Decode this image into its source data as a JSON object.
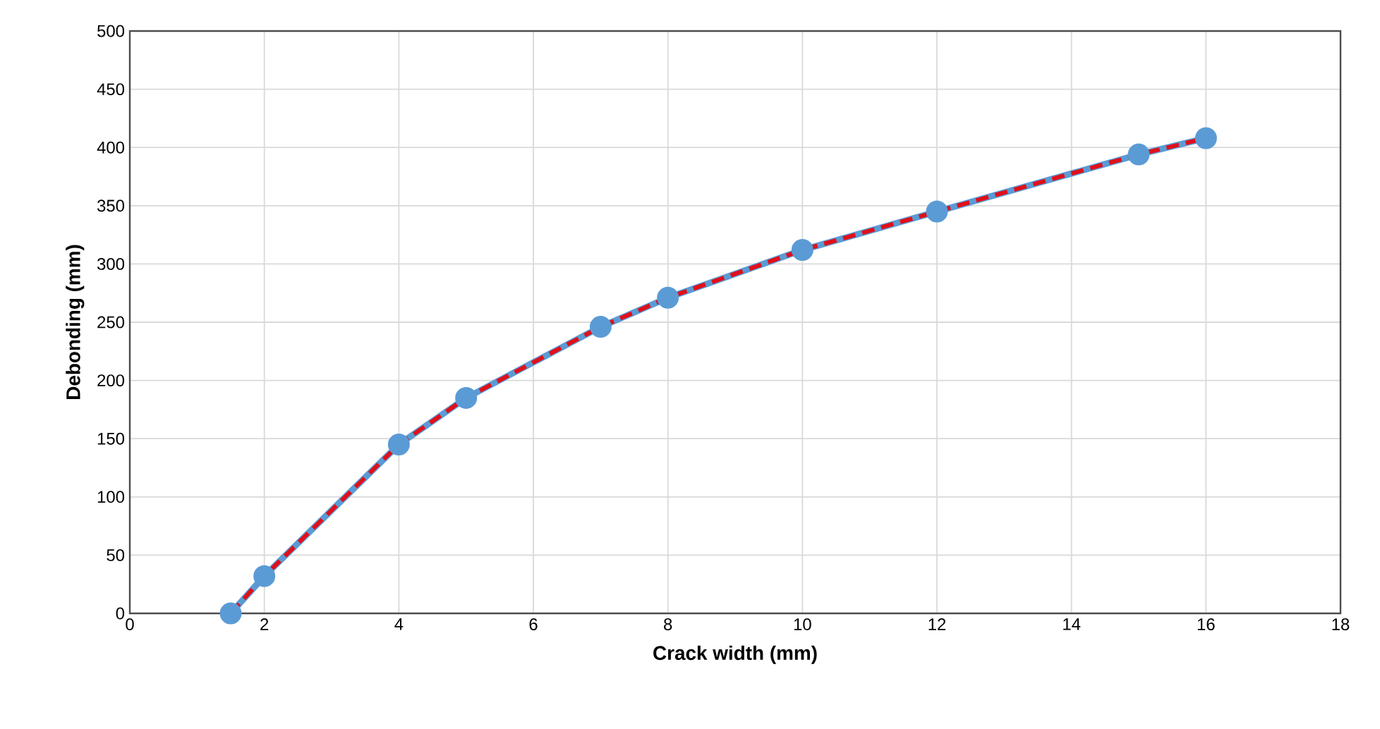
{
  "chart_data": {
    "type": "line",
    "xlabel": "Crack width (mm)",
    "ylabel": "Debonding (mm)",
    "xlim": [
      0,
      18
    ],
    "xticks": [
      0,
      2,
      4,
      6,
      8,
      10,
      12,
      14,
      16,
      18
    ],
    "ylim": [
      0,
      500
    ],
    "yticks": [
      0,
      50,
      100,
      150,
      200,
      250,
      300,
      350,
      400,
      450,
      500
    ],
    "grid": true,
    "series": [
      {
        "color": "#5b9bd5",
        "marker": "circle",
        "line_style": "solid",
        "x": [
          1.5,
          2,
          4,
          5,
          7,
          8,
          10,
          12,
          15,
          16
        ],
        "values": [
          0,
          32,
          145,
          185,
          246,
          271,
          312,
          345,
          394,
          408
        ]
      },
      {
        "color": "#e0101a",
        "marker": "none",
        "line_style": "dashed",
        "x": [
          1.5,
          2,
          4,
          5,
          7,
          8,
          10,
          12,
          15,
          16
        ],
        "values": [
          0,
          32,
          145,
          185,
          246,
          271,
          312,
          345,
          394,
          408
        ]
      }
    ]
  }
}
